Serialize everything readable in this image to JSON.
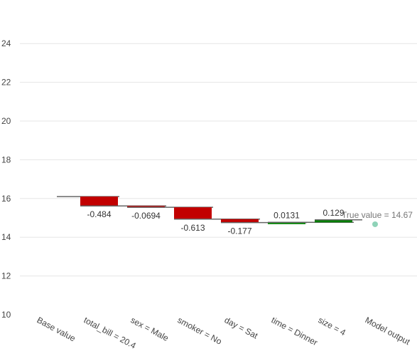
{
  "chart_data": {
    "type": "bar",
    "subtype": "waterfall",
    "title": "",
    "xlabel": "",
    "ylabel": "",
    "ylim": [
      10,
      25
    ],
    "yticks": [
      10,
      12,
      14,
      16,
      18,
      20,
      22,
      24
    ],
    "grid": true,
    "categories": [
      "Base value",
      "total_bill = 20.4",
      "sex = Male",
      "smoker = No",
      "day = Sat",
      "time = Dinner",
      "size = 4",
      "Model output"
    ],
    "base_value": 16.1,
    "contributions": [
      {
        "category": "total_bill = 20.4",
        "value": -0.484,
        "label": "-0.484"
      },
      {
        "category": "sex = Male",
        "value": -0.0694,
        "label": "-0.0694"
      },
      {
        "category": "smoker = No",
        "value": -0.613,
        "label": "-0.613"
      },
      {
        "category": "day = Sat",
        "value": -0.177,
        "label": "-0.177"
      },
      {
        "category": "time = Dinner",
        "value": 0.0131,
        "label": "0.0131"
      },
      {
        "category": "size = 4",
        "value": 0.129,
        "label": "0.129"
      }
    ],
    "true_value": 14.67,
    "true_value_label": "True value = 14.67",
    "colors": {
      "negative": "#c20000",
      "positive": "#008000",
      "true_value_marker": "#8fd3b8",
      "connector": "#666666"
    }
  }
}
